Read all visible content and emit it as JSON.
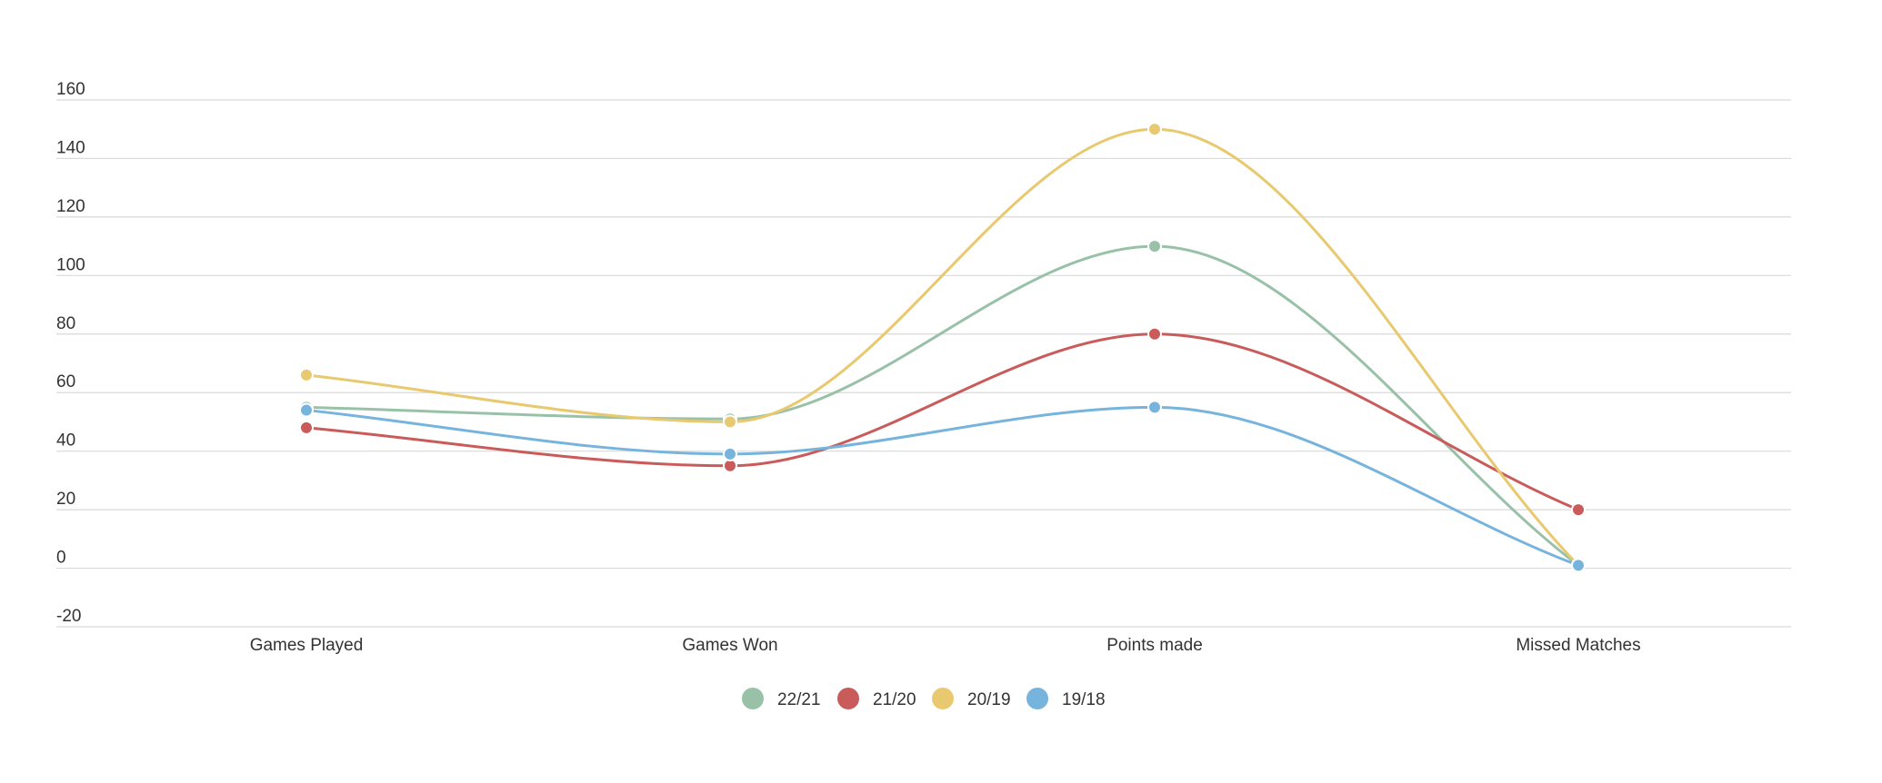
{
  "chart_data": {
    "type": "line",
    "title": "",
    "xlabel": "",
    "ylabel": "",
    "categories": [
      "Games Played",
      "Games Won",
      "Points made",
      "Missed Matches"
    ],
    "ylim": [
      -20,
      160
    ],
    "yticks": [
      -20,
      0,
      20,
      40,
      60,
      80,
      100,
      120,
      140,
      160
    ],
    "grid": true,
    "legend_position": "bottom-center",
    "series": [
      {
        "name": "22/21",
        "color": "#99c1a8",
        "values": [
          55,
          51,
          110,
          1
        ]
      },
      {
        "name": "21/20",
        "color": "#c95b5b",
        "values": [
          48,
          35,
          80,
          20
        ]
      },
      {
        "name": "20/19",
        "color": "#e8c96f",
        "values": [
          66,
          50,
          150,
          1
        ]
      },
      {
        "name": "19/18",
        "color": "#76b4dd",
        "values": [
          54,
          39,
          55,
          1
        ]
      }
    ]
  }
}
